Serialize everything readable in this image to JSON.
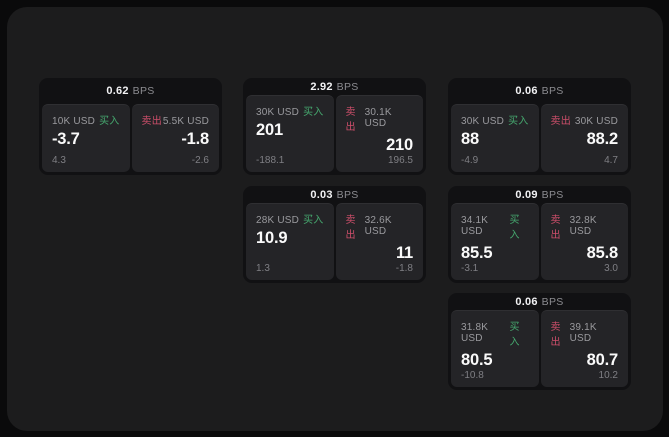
{
  "labels": {
    "buy": "买入",
    "sell": "卖出",
    "bps_unit": "BPS"
  },
  "colors": {
    "buy_green": "#46a96f",
    "sell_red": "#cf4f6b",
    "window_bg": "#1c1c1d",
    "card_bg": "#111113",
    "panel_bg": "#242427"
  },
  "cards": [
    {
      "bps": "0.62",
      "buy": {
        "amount": "10K USD",
        "value": "-3.7",
        "sub": "4.3"
      },
      "sell": {
        "amount": "5.5K USD",
        "value": "-1.8",
        "sub": "-2.6"
      }
    },
    {
      "bps": "2.92",
      "buy": {
        "amount": "30K USD",
        "value": "201",
        "sub": "-188.1"
      },
      "sell": {
        "amount": "30.1K USD",
        "value": "210",
        "sub": "196.5"
      }
    },
    {
      "bps": "0.06",
      "buy": {
        "amount": "30K USD",
        "value": "88",
        "sub": "-4.9"
      },
      "sell": {
        "amount": "30K USD",
        "value": "88.2",
        "sub": "4.7"
      }
    },
    {
      "bps": "0.03",
      "buy": {
        "amount": "28K USD",
        "value": "10.9",
        "sub": "1.3"
      },
      "sell": {
        "amount": "32.6K USD",
        "value": "11",
        "sub": "-1.8"
      }
    },
    {
      "bps": "0.09",
      "buy": {
        "amount": "34.1K USD",
        "value": "85.5",
        "sub": "-3.1"
      },
      "sell": {
        "amount": "32.8K USD",
        "value": "85.8",
        "sub": "3.0"
      }
    },
    {
      "bps": "0.06",
      "buy": {
        "amount": "31.8K USD",
        "value": "80.5",
        "sub": "-10.8"
      },
      "sell": {
        "amount": "39.1K USD",
        "value": "80.7",
        "sub": "10.2"
      }
    }
  ]
}
